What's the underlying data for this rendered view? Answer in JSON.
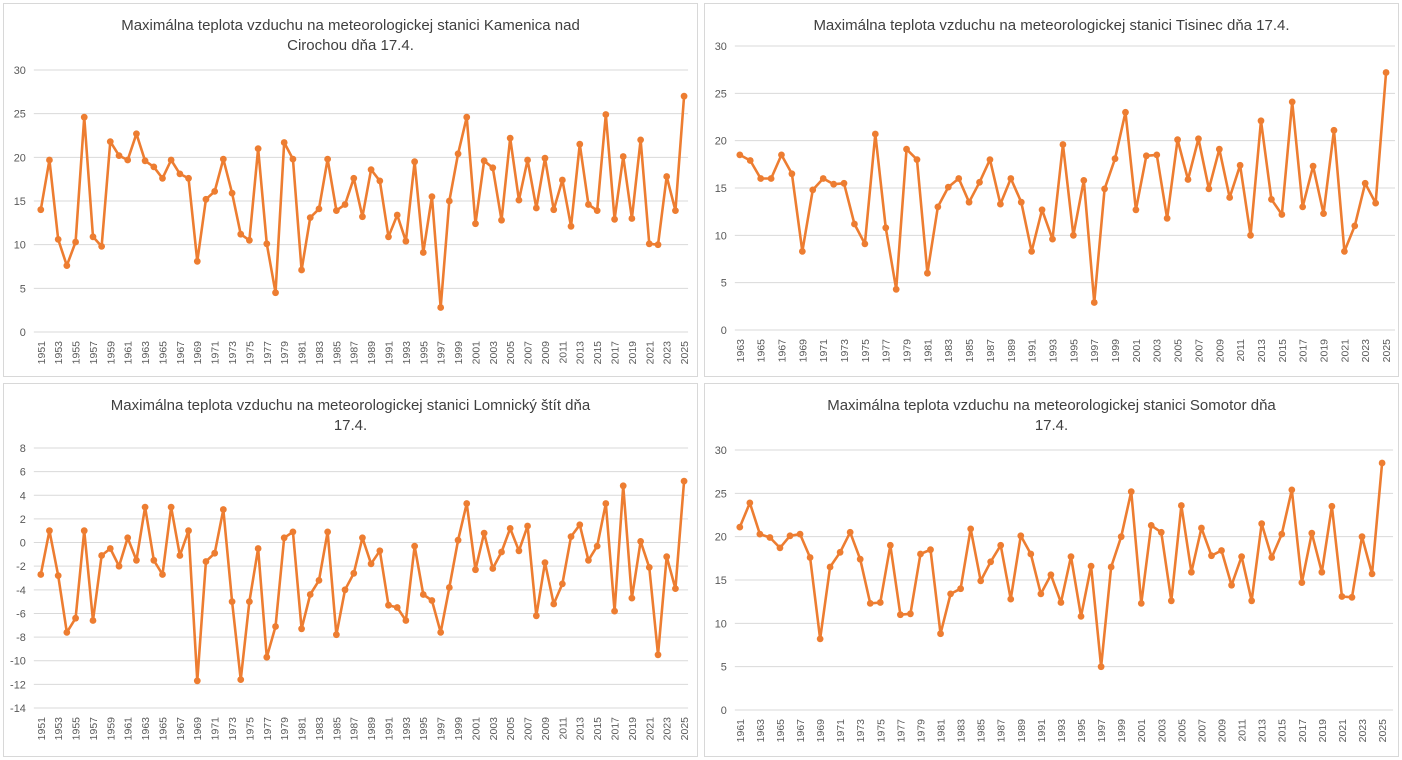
{
  "style": {
    "line_color": "#ED7D31",
    "gridline_color": "#D9D9D9",
    "tick_label_color": "#595959",
    "title_color": "#404040",
    "background": "#ffffff"
  },
  "chart_data": [
    {
      "type": "line",
      "station": "Kamenica nad Cirochou",
      "title": "Maximálna teplota vzduchu na meteorologickej stanici Kamenica nad Cirochou dňa 17.4.",
      "xlabel": "",
      "ylabel": "",
      "x_range": [
        1951,
        2025
      ],
      "x_interval": 1,
      "x_tick_every": 2,
      "ylim": [
        0,
        30
      ],
      "ytick_step": 5,
      "grid": true,
      "legend": "none",
      "marker": "circle",
      "values": [
        14.0,
        19.7,
        10.6,
        7.6,
        10.3,
        24.6,
        10.9,
        9.8,
        21.8,
        20.2,
        19.7,
        22.7,
        19.6,
        18.9,
        17.6,
        19.7,
        18.1,
        17.6,
        8.1,
        15.2,
        16.1,
        19.8,
        15.9,
        11.2,
        10.5,
        21.0,
        10.1,
        4.5,
        21.7,
        19.8,
        7.1,
        13.1,
        14.1,
        19.8,
        13.9,
        14.6,
        17.6,
        13.2,
        18.6,
        17.3,
        10.9,
        13.4,
        10.4,
        19.5,
        9.1,
        15.5,
        2.8,
        15.0,
        20.4,
        24.6,
        12.4,
        19.6,
        18.8,
        12.8,
        22.2,
        15.1,
        19.7,
        14.2,
        19.9,
        14.0,
        17.4,
        12.1,
        21.5,
        14.6,
        13.9,
        24.9,
        12.9,
        20.1,
        13.0,
        22.0,
        10.1,
        10.0,
        17.8,
        13.9,
        27.0
      ]
    },
    {
      "type": "line",
      "station": "Tisinec",
      "title": "Maximálna teplota vzduchu na meteorologickej stanici Tisinec dňa 17.4.",
      "xlabel": "",
      "ylabel": "",
      "x_range": [
        1963,
        2025
      ],
      "x_interval": 1,
      "x_tick_every": 2,
      "ylim": [
        0,
        30
      ],
      "ytick_step": 5,
      "grid": true,
      "legend": "none",
      "marker": "circle",
      "values": [
        18.5,
        17.9,
        16.0,
        16.0,
        18.5,
        16.5,
        8.3,
        14.8,
        16.0,
        15.4,
        15.5,
        11.2,
        9.1,
        20.7,
        10.8,
        4.3,
        19.1,
        18.0,
        6.0,
        13.0,
        15.1,
        16.0,
        13.5,
        15.6,
        18.0,
        13.3,
        16.0,
        13.5,
        8.3,
        12.7,
        9.6,
        19.6,
        10.0,
        15.8,
        2.9,
        14.9,
        18.1,
        23.0,
        12.7,
        18.4,
        18.5,
        11.8,
        20.1,
        15.9,
        20.2,
        14.9,
        19.1,
        14.0,
        17.4,
        10.0,
        22.1,
        13.8,
        12.2,
        24.1,
        13.0,
        17.3,
        12.3,
        21.1,
        8.3,
        11.0,
        15.5,
        13.4,
        27.2
      ]
    },
    {
      "type": "line",
      "station": "Lomnický štít",
      "title": "Maximálna teplota vzduchu na meteorologickej stanici Lomnický štít dňa 17.4.",
      "xlabel": "",
      "ylabel": "",
      "x_range": [
        1951,
        2025
      ],
      "x_interval": 1,
      "x_tick_every": 2,
      "ylim": [
        -14,
        8
      ],
      "ytick_step": 2,
      "grid": true,
      "legend": "none",
      "marker": "circle",
      "values": [
        -2.7,
        1.0,
        -2.8,
        -7.6,
        -6.4,
        1.0,
        -6.6,
        -1.1,
        -0.5,
        -2.0,
        0.4,
        -1.5,
        3.0,
        -1.5,
        -2.7,
        3.0,
        -1.1,
        1.0,
        -11.7,
        -1.6,
        -0.9,
        2.8,
        -5.0,
        -11.6,
        -5.0,
        -0.5,
        -9.7,
        -7.1,
        0.4,
        0.9,
        -7.3,
        -4.4,
        -3.2,
        0.9,
        -7.8,
        -4.0,
        -2.6,
        0.4,
        -1.8,
        -0.7,
        -5.3,
        -5.5,
        -6.6,
        -0.3,
        -4.4,
        -4.9,
        -7.6,
        -3.8,
        0.2,
        3.3,
        -2.3,
        0.8,
        -2.2,
        -0.8,
        1.2,
        -0.7,
        1.4,
        -6.2,
        -1.7,
        -5.2,
        -3.5,
        0.5,
        1.5,
        -1.5,
        -0.3,
        3.3,
        -5.8,
        4.8,
        -4.7,
        0.1,
        -2.1,
        -9.5,
        -1.2,
        -3.9,
        5.2
      ]
    },
    {
      "type": "line",
      "station": "Somotor",
      "title": "Maximálna teplota vzduchu na meteorologickej stanici Somotor dňa 17.4.",
      "xlabel": "",
      "ylabel": "",
      "x_range": [
        1961,
        2025
      ],
      "x_interval": 1,
      "x_tick_every": 2,
      "ylim": [
        0,
        30
      ],
      "ytick_step": 5,
      "grid": true,
      "legend": "none",
      "marker": "circle",
      "values": [
        21.1,
        23.9,
        20.3,
        19.9,
        18.7,
        20.1,
        20.3,
        17.6,
        8.2,
        16.5,
        18.2,
        20.5,
        17.4,
        12.3,
        12.4,
        19.0,
        11.0,
        11.1,
        18.0,
        18.5,
        8.8,
        13.4,
        14.0,
        20.9,
        14.9,
        17.1,
        19.0,
        12.8,
        20.1,
        18.0,
        13.4,
        15.6,
        12.4,
        17.7,
        10.8,
        16.6,
        5.0,
        16.5,
        20.0,
        25.2,
        12.3,
        21.3,
        20.5,
        12.6,
        23.6,
        15.9,
        21.0,
        17.8,
        18.4,
        14.4,
        17.7,
        12.6,
        21.5,
        17.6,
        20.3,
        25.4,
        14.7,
        20.4,
        15.9,
        23.5,
        13.1,
        13.0,
        20.0,
        15.7,
        28.5
      ]
    }
  ]
}
